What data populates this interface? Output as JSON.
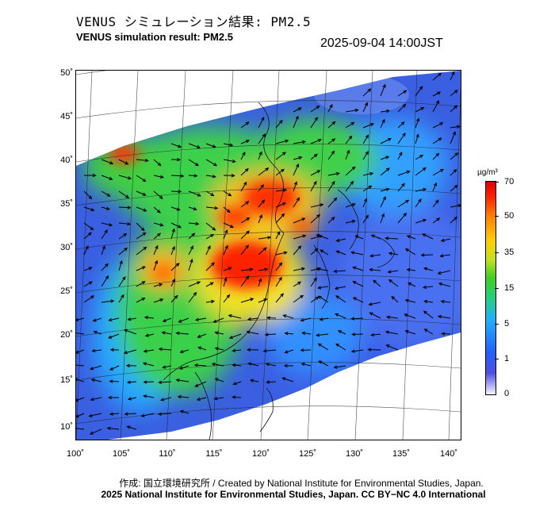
{
  "header": {
    "title_jp": "VENUS シミュレーション結果: PM2.5",
    "title_en": "VENUS simulation result: PM2.5",
    "timestamp": "2025-09-04 14:00JST"
  },
  "map": {
    "lat_labels": [
      "50˚",
      "45˚",
      "40˚",
      "35˚",
      "30˚",
      "25˚",
      "20˚",
      "15˚",
      "10˚"
    ],
    "lon_labels": [
      "100˚",
      "105˚",
      "110˚",
      "115˚",
      "120˚",
      "125˚",
      "130˚",
      "135˚",
      "140˚"
    ],
    "colorbar": {
      "unit": "µg/m³",
      "ticks": [
        "70",
        "50",
        "35",
        "15",
        "5",
        "1",
        "0"
      ]
    },
    "colors": {
      "low": "#3f5ad8",
      "mid": "#3ad04a",
      "high": "#ff2a00"
    }
  },
  "footer": {
    "credit": "作成: 国立環境研究所 / Created by National Institute for Environmental Studies, Japan.",
    "license": "2025 National Institute for Environmental Studies, Japan. CC BY−NC 4.0 International"
  }
}
